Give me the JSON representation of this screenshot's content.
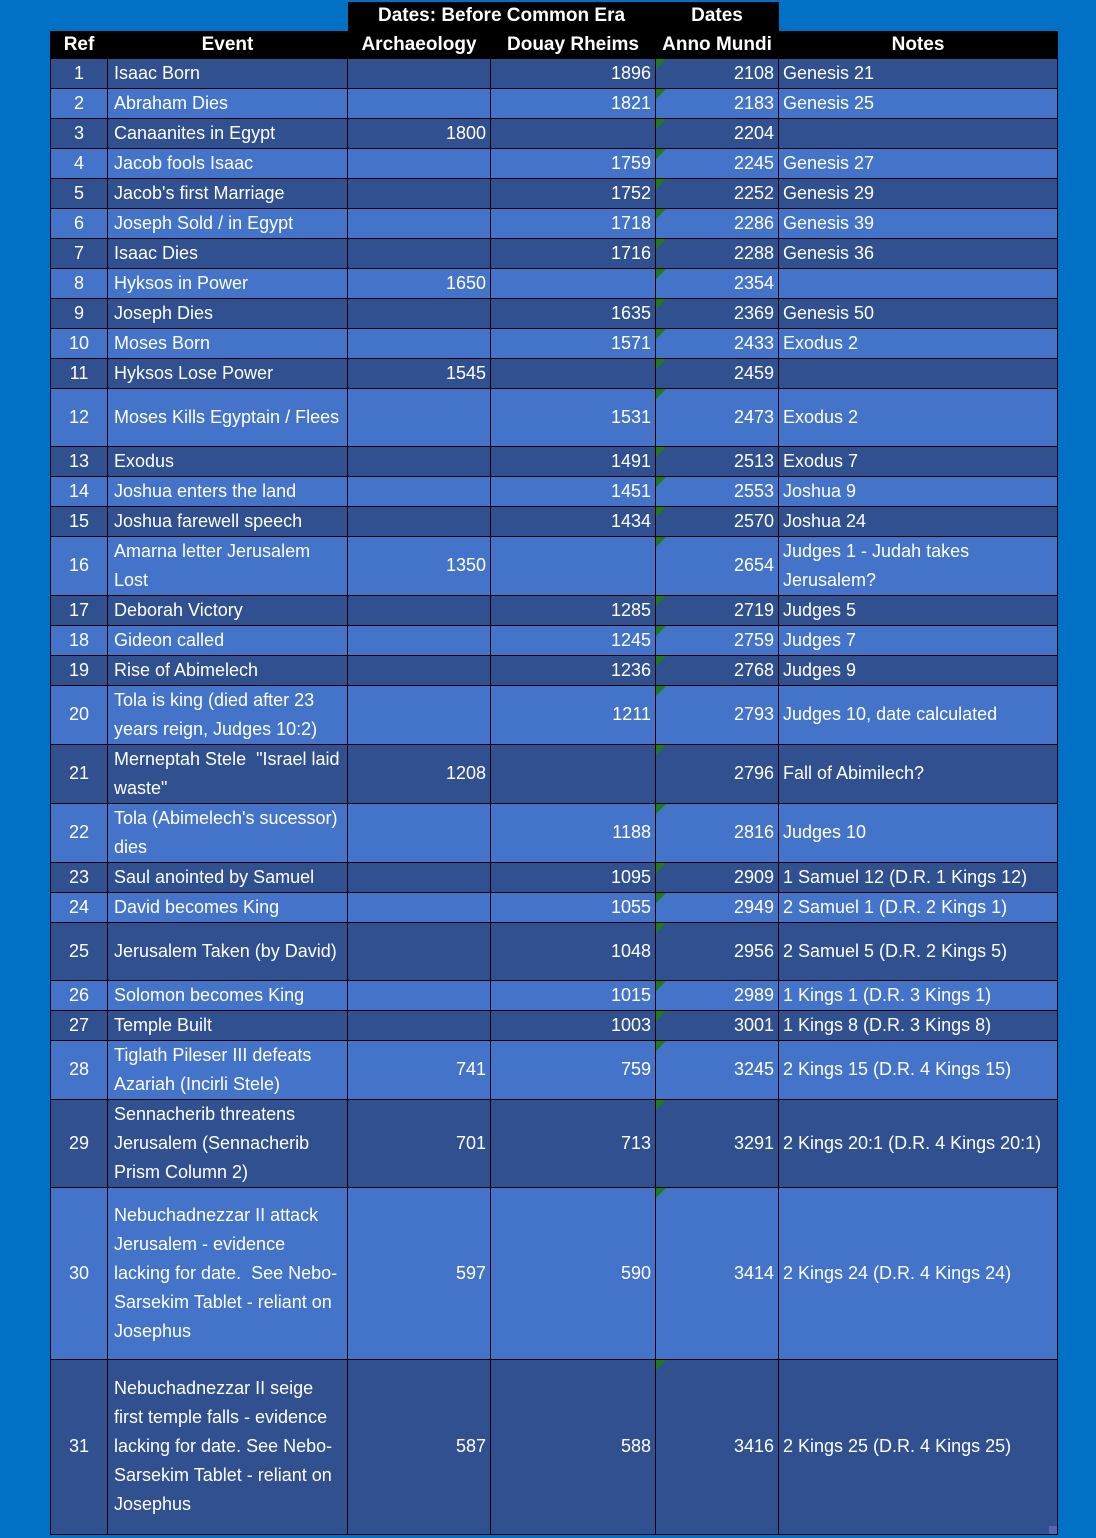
{
  "colors": {
    "background": "#0071c5",
    "header_bg": "#000000",
    "row_dark": "#30508f",
    "row_light": "#4474c9",
    "text": "#ffffff",
    "triangle": "#1e7c1e",
    "fill_handle": "#5b63ad"
  },
  "table": {
    "group_headers": [
      "Dates: Before Common Era",
      "Dates"
    ],
    "columns": [
      "Ref",
      "Event",
      "Archaeology",
      "Douay Rheims",
      "Anno Mundi",
      "Notes"
    ],
    "rows": [
      {
        "ref": "1",
        "event": "Isaac Born",
        "archaeology": "",
        "douay_rheims": "1896",
        "anno_mundi": "2108",
        "notes": "Genesis 21"
      },
      {
        "ref": "2",
        "event": "Abraham Dies",
        "archaeology": "",
        "douay_rheims": "1821",
        "anno_mundi": "2183",
        "notes": "Genesis 25"
      },
      {
        "ref": "3",
        "event": "Canaanites in Egypt",
        "archaeology": "1800",
        "douay_rheims": "",
        "anno_mundi": "2204",
        "notes": ""
      },
      {
        "ref": "4",
        "event": "Jacob fools Isaac",
        "archaeology": "",
        "douay_rheims": "1759",
        "anno_mundi": "2245",
        "notes": "Genesis 27"
      },
      {
        "ref": "5",
        "event": "Jacob's first Marriage",
        "archaeology": "",
        "douay_rheims": "1752",
        "anno_mundi": "2252",
        "notes": "Genesis 29"
      },
      {
        "ref": "6",
        "event": "Joseph Sold / in Egypt",
        "archaeology": "",
        "douay_rheims": "1718",
        "anno_mundi": "2286",
        "notes": "Genesis 39"
      },
      {
        "ref": "7",
        "event": "Isaac Dies",
        "archaeology": "",
        "douay_rheims": "1716",
        "anno_mundi": "2288",
        "notes": "Genesis 36"
      },
      {
        "ref": "8",
        "event": "Hyksos in Power",
        "archaeology": "1650",
        "douay_rheims": "",
        "anno_mundi": "2354",
        "notes": ""
      },
      {
        "ref": "9",
        "event": "Joseph Dies",
        "archaeology": "",
        "douay_rheims": "1635",
        "anno_mundi": "2369",
        "notes": "Genesis 50"
      },
      {
        "ref": "10",
        "event": "Moses Born",
        "archaeology": "",
        "douay_rheims": "1571",
        "anno_mundi": "2433",
        "notes": "Exodus 2"
      },
      {
        "ref": "11",
        "event": "Hyksos Lose Power",
        "archaeology": "1545",
        "douay_rheims": "",
        "anno_mundi": "2459",
        "notes": ""
      },
      {
        "ref": "12",
        "event": "Moses Kills Egyptain / Flees",
        "archaeology": "",
        "douay_rheims": "1531",
        "anno_mundi": "2473",
        "notes": "Exodus 2"
      },
      {
        "ref": "13",
        "event": "Exodus",
        "archaeology": "",
        "douay_rheims": "1491",
        "anno_mundi": "2513",
        "notes": "Exodus 7"
      },
      {
        "ref": "14",
        "event": "Joshua enters the land",
        "archaeology": "",
        "douay_rheims": "1451",
        "anno_mundi": "2553",
        "notes": "Joshua 9"
      },
      {
        "ref": "15",
        "event": "Joshua farewell speech",
        "archaeology": "",
        "douay_rheims": "1434",
        "anno_mundi": "2570",
        "notes": "Joshua 24"
      },
      {
        "ref": "16",
        "event": "Amarna letter Jerusalem Lost",
        "archaeology": "1350",
        "douay_rheims": "",
        "anno_mundi": "2654",
        "notes": "Judges 1 - Judah takes Jerusalem?"
      },
      {
        "ref": "17",
        "event": "Deborah Victory",
        "archaeology": "",
        "douay_rheims": "1285",
        "anno_mundi": "2719",
        "notes": "Judges 5"
      },
      {
        "ref": "18",
        "event": "Gideon called",
        "archaeology": "",
        "douay_rheims": "1245",
        "anno_mundi": "2759",
        "notes": "Judges 7"
      },
      {
        "ref": "19",
        "event": "Rise of Abimelech",
        "archaeology": "",
        "douay_rheims": "1236",
        "anno_mundi": "2768",
        "notes": "Judges 9"
      },
      {
        "ref": "20",
        "event": "Tola is king (died after 23 years reign, Judges 10:2)",
        "archaeology": "",
        "douay_rheims": "1211",
        "anno_mundi": "2793",
        "notes": "Judges 10, date calculated"
      },
      {
        "ref": "21",
        "event": "Merneptah Stele  \"Israel laid waste\"",
        "archaeology": "1208",
        "douay_rheims": "",
        "anno_mundi": "2796",
        "notes": "Fall of Abimilech?"
      },
      {
        "ref": "22",
        "event": "Tola (Abimelech's sucessor) dies",
        "archaeology": "",
        "douay_rheims": "1188",
        "anno_mundi": "2816",
        "notes": "Judges 10"
      },
      {
        "ref": "23",
        "event": "Saul anointed by Samuel",
        "archaeology": "",
        "douay_rheims": "1095",
        "anno_mundi": "2909",
        "notes": "1 Samuel 12 (D.R. 1 Kings 12)"
      },
      {
        "ref": "24",
        "event": "David becomes King",
        "archaeology": "",
        "douay_rheims": "1055",
        "anno_mundi": "2949",
        "notes": "2 Samuel 1 (D.R. 2 Kings 1)"
      },
      {
        "ref": "25",
        "event": "Jerusalem Taken (by David)",
        "archaeology": "",
        "douay_rheims": "1048",
        "anno_mundi": "2956",
        "notes": "2 Samuel 5 (D.R. 2 Kings 5)"
      },
      {
        "ref": "26",
        "event": "Solomon becomes King",
        "archaeology": "",
        "douay_rheims": "1015",
        "anno_mundi": "2989",
        "notes": "1 Kings 1 (D.R. 3 Kings 1)"
      },
      {
        "ref": "27",
        "event": "Temple Built",
        "archaeology": "",
        "douay_rheims": "1003",
        "anno_mundi": "3001",
        "notes": "1 Kings 8 (D.R. 3 Kings 8)"
      },
      {
        "ref": "28",
        "event": "Tiglath Pileser III defeats Azariah (Incirli Stele)",
        "archaeology": "741",
        "douay_rheims": "759",
        "anno_mundi": "3245",
        "notes": "2 Kings 15 (D.R. 4 Kings 15)"
      },
      {
        "ref": "29",
        "event": "Sennacherib threatens Jerusalem (Sennacherib Prism Column 2)",
        "archaeology": "701",
        "douay_rheims": "713",
        "anno_mundi": "3291",
        "notes": "2 Kings 20:1 (D.R. 4 Kings 20:1)"
      },
      {
        "ref": "30",
        "event": "Nebuchadnezzar II attack Jerusalem - evidence lacking for date.  See Nebo-Sarsekim Tablet - reliant on Josephus",
        "archaeology": "597",
        "douay_rheims": "590",
        "anno_mundi": "3414",
        "notes": "2 Kings 24 (D.R. 4 Kings 24)"
      },
      {
        "ref": "31",
        "event": "Nebuchadnezzar II seige first temple falls - evidence lacking for date. See Nebo-Sarsekim Tablet - reliant on Josephus",
        "archaeology": "587",
        "douay_rheims": "588",
        "anno_mundi": "3416",
        "notes": "2 Kings 25 (D.R. 4 Kings 25)"
      }
    ]
  }
}
